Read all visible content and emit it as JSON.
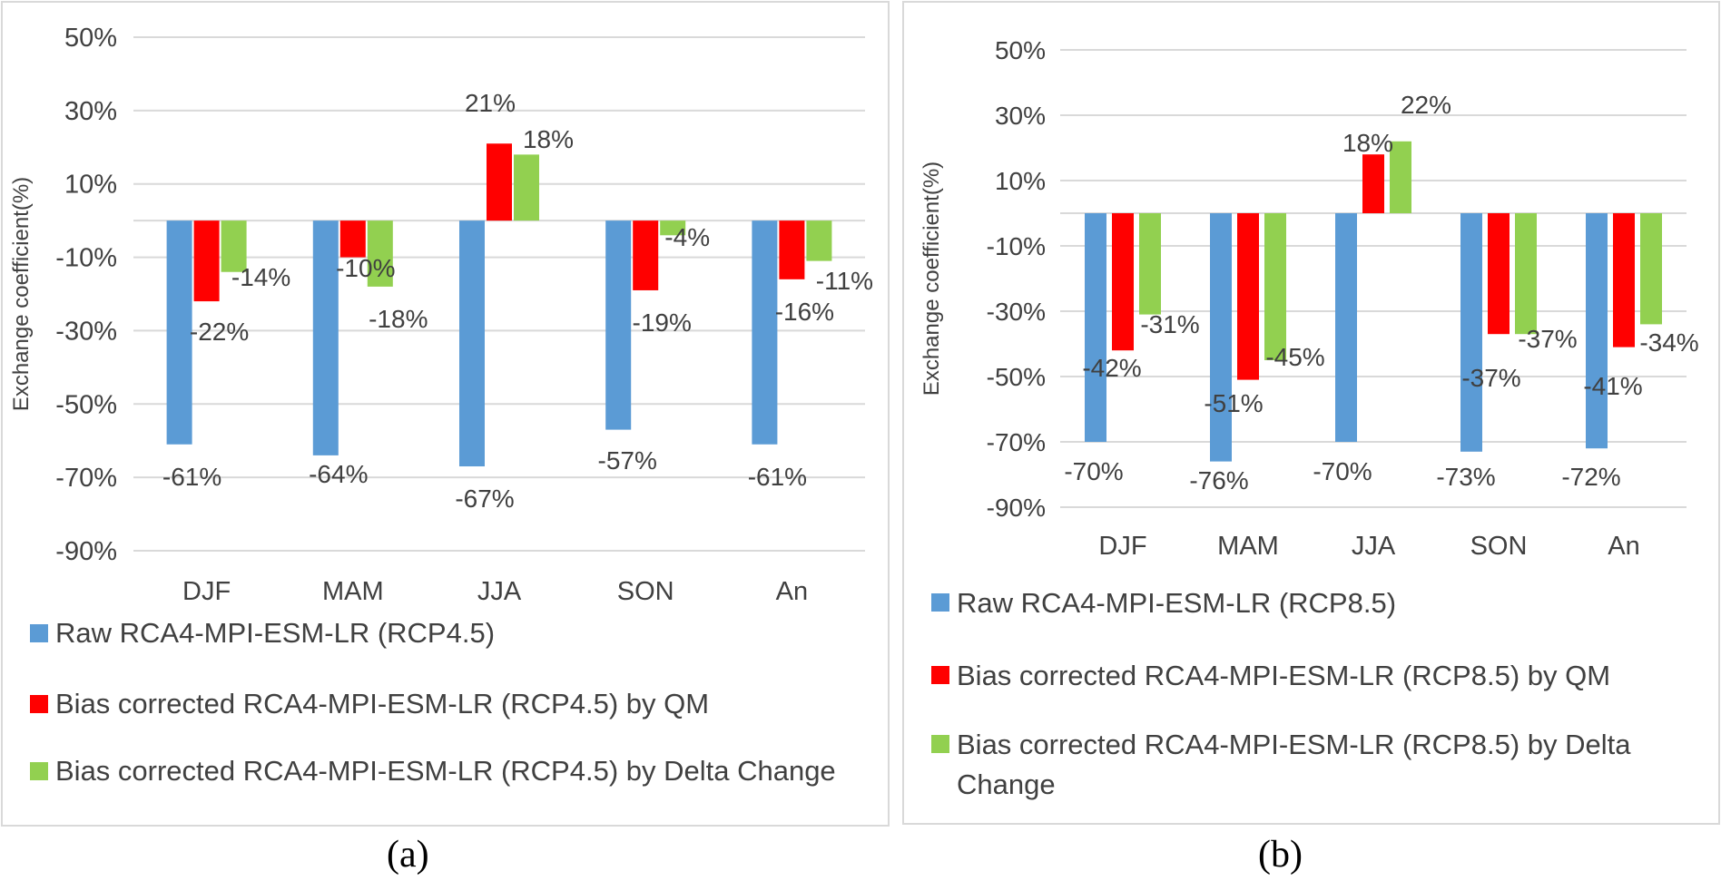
{
  "colors": {
    "raw": "#5b9bd5",
    "qm": "#ff0000",
    "delta": "#92d050",
    "grid": "#d9d9d9",
    "text": "#404040"
  },
  "captions": {
    "a": "(a)",
    "b": "(b)"
  },
  "chart_data": [
    {
      "type": "bar",
      "panel": "a",
      "ylabel": "Exchange coefficient(%)",
      "xlabel": "",
      "ylim": [
        -90,
        50
      ],
      "yticks": [
        50,
        30,
        10,
        -10,
        -30,
        -50,
        -70,
        -90
      ],
      "ytick_labels": [
        "50%",
        "30%",
        "10%",
        "-10%",
        "-30%",
        "-50%",
        "-70%",
        "-90%"
      ],
      "categories": [
        "DJF",
        "MAM",
        "JJA",
        "SON",
        "An"
      ],
      "grid": true,
      "legend_position": "bottom",
      "series": [
        {
          "name": "Raw RCA4-MPI-ESM-LR (RCP4.5)",
          "color": "#5b9bd5",
          "values": [
            -61,
            -64,
            -67,
            -57,
            -61
          ],
          "labels": [
            "-61%",
            "-64%",
            "-67%",
            "-57%",
            "-61%"
          ]
        },
        {
          "name": "Bias corrected RCA4-MPI-ESM-LR (RCP4.5) by QM",
          "color": "#ff0000",
          "values": [
            -22,
            -10,
            21,
            -19,
            -16
          ],
          "labels": [
            "-22%",
            "-10%",
            "21%",
            "-19%",
            "-16%"
          ]
        },
        {
          "name": "Bias corrected RCA4-MPI-ESM-LR (RCP4.5) by Delta Change",
          "color": "#92d050",
          "values": [
            -14,
            -18,
            18,
            -4,
            -11
          ],
          "labels": [
            "-14%",
            "-18%",
            "18%",
            "-4%",
            "-11%"
          ]
        }
      ]
    },
    {
      "type": "bar",
      "panel": "b",
      "ylabel": "Exchange coefficient(%)",
      "xlabel": "",
      "ylim": [
        -90,
        50
      ],
      "yticks": [
        50,
        30,
        10,
        -10,
        -30,
        -50,
        -70,
        -90
      ],
      "ytick_labels": [
        "50%",
        "30%",
        "10%",
        "-10%",
        "-30%",
        "-50%",
        "-70%",
        "-90%"
      ],
      "categories": [
        "DJF",
        "MAM",
        "JJA",
        "SON",
        "An"
      ],
      "grid": true,
      "legend_position": "bottom",
      "series": [
        {
          "name": "Raw RCA4-MPI-ESM-LR (RCP8.5)",
          "color": "#5b9bd5",
          "values": [
            -70,
            -76,
            -70,
            -73,
            -72
          ],
          "labels": [
            "-70%",
            "-76%",
            "-70%",
            "-73%",
            "-72%"
          ]
        },
        {
          "name": "Bias corrected RCA4-MPI-ESM-LR (RCP8.5) by QM",
          "color": "#ff0000",
          "values": [
            -42,
            -51,
            18,
            -37,
            -41
          ],
          "labels": [
            "-42%",
            "-51%",
            "18%",
            "-37%",
            "-41%"
          ]
        },
        {
          "name": "Bias corrected RCA4-MPI-ESM-LR (RCP8.5) by Delta Change",
          "color": "#92d050",
          "values": [
            -31,
            -45,
            22,
            -37,
            -34
          ],
          "labels": [
            "-31%",
            "-45%",
            "22%",
            "-37%",
            "-34%"
          ]
        }
      ]
    }
  ]
}
